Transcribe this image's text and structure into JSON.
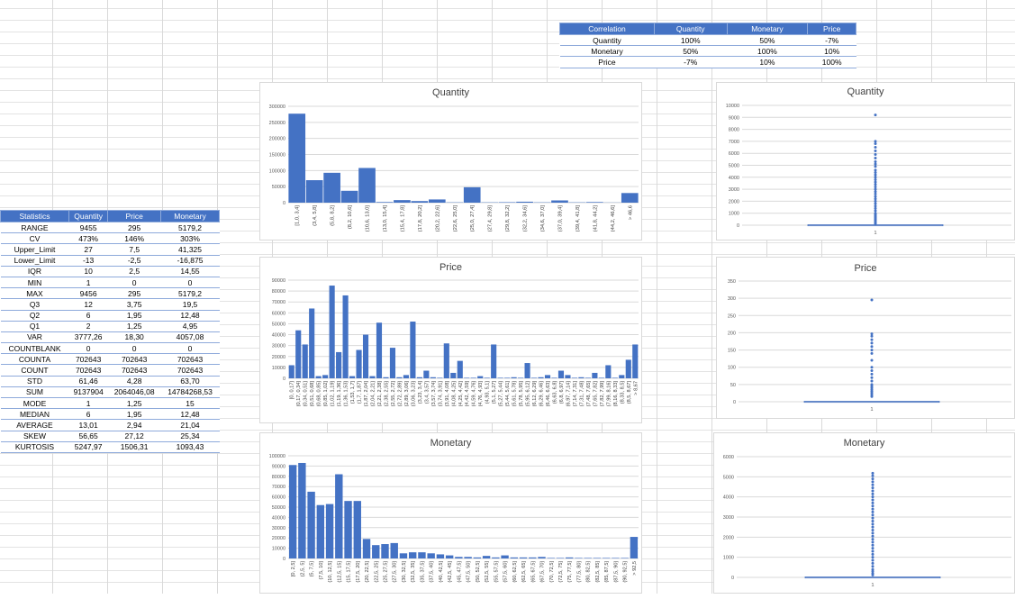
{
  "correlation": {
    "headers": [
      "Correlation",
      "Quantity",
      "Monetary",
      "Price"
    ],
    "rows": [
      [
        "Quantity",
        "100%",
        "50%",
        "-7%"
      ],
      [
        "Monetary",
        "50%",
        "100%",
        "10%"
      ],
      [
        "Price",
        "-7%",
        "10%",
        "100%"
      ]
    ]
  },
  "statistics": {
    "headers": [
      "Statistics",
      "Quantity",
      "Price",
      "Monetary"
    ],
    "rows": [
      [
        "RANGE",
        "9455",
        "295",
        "5179,2"
      ],
      [
        "CV",
        "473%",
        "146%",
        "303%"
      ],
      [
        "Upper_Limit",
        "27",
        "7,5",
        "41,325"
      ],
      [
        "Lower_Limit",
        "-13",
        "-2,5",
        "-16,875"
      ],
      [
        "IQR",
        "10",
        "2,5",
        "14,55"
      ],
      [
        "MIN",
        "1",
        "0",
        "0"
      ],
      [
        "MAX",
        "9456",
        "295",
        "5179,2"
      ],
      [
        "Q3",
        "12",
        "3,75",
        "19,5"
      ],
      [
        "Q2",
        "6",
        "1,95",
        "12,48"
      ],
      [
        "Q1",
        "2",
        "1,25",
        "4,95"
      ],
      [
        "VAR",
        "3777,26",
        "18,30",
        "4057,08"
      ],
      [
        "COUNTBLANK",
        "0",
        "0",
        "0"
      ],
      [
        "COUNTA",
        "702643",
        "702643",
        "702643"
      ],
      [
        "COUNT",
        "702643",
        "702643",
        "702643"
      ],
      [
        "STD",
        "61,46",
        "4,28",
        "63,70"
      ],
      [
        "SUM",
        "9137904",
        "2064046,08",
        "14784268,53"
      ],
      [
        "MODE",
        "1",
        "1,25",
        "15"
      ],
      [
        "MEDIAN",
        "6",
        "1,95",
        "12,48"
      ],
      [
        "AVERAGE",
        "13,01",
        "2,94",
        "21,04"
      ],
      [
        "SKEW",
        "56,65",
        "27,12",
        "25,34"
      ],
      [
        "KURTOSIS",
        "5247,97",
        "1506,31",
        "1093,43"
      ]
    ]
  },
  "chart_data": [
    {
      "id": "hist-quantity",
      "type": "bar",
      "title": "Quantity",
      "ylim": [
        0,
        300000
      ],
      "yticks": [
        0,
        50000,
        100000,
        150000,
        200000,
        250000,
        300000
      ],
      "categories": [
        "[1,0, 3,4]",
        "(3,4, 5,8]",
        "(5,8, 8,2]",
        "(8,2, 10,6]",
        "(10,6, 13,0]",
        "(13,0, 15,4]",
        "(15,4, 17,8]",
        "(17,8, 20,2]",
        "(20,2, 22,6]",
        "(22,6, 25,0]",
        "(25,0, 27,4]",
        "(27,4, 29,8]",
        "(29,8, 32,2]",
        "(32,2, 34,6]",
        "(34,6, 37,0]",
        "(37,0, 39,4]",
        "(39,4, 41,8]",
        "(41,8, 44,2]",
        "(44,2, 46,6]",
        "> 46,6"
      ],
      "values": [
        277000,
        70000,
        93000,
        37000,
        108000,
        2000,
        8000,
        5000,
        10000,
        1000,
        48000,
        1000,
        1500,
        3000,
        1000,
        7000,
        1000,
        2000,
        500,
        30000
      ],
      "grid": true
    },
    {
      "id": "hist-price",
      "type": "bar",
      "title": "Price",
      "ylim": [
        0,
        90000
      ],
      "yticks": [
        0,
        10000,
        20000,
        30000,
        40000,
        50000,
        60000,
        70000,
        80000,
        90000
      ],
      "categories": [
        "[0, 0,17]",
        "(0,17, 0,34]",
        "(0,34, 0,51]",
        "(0,51, 0,68]",
        "(0,68, 0,85]",
        "(0,85, 1,02]",
        "(1,02, 1,19]",
        "(1,19, 1,36]",
        "(1,36, 1,53]",
        "(1,53, 1,7]",
        "(1,7, 1,87]",
        "(1,87, 2,04]",
        "(2,04, 2,21]",
        "(2,21, 2,38]",
        "(2,38, 2,55]",
        "(2,55, 2,72]",
        "(2,72, 2,89]",
        "(2,89, 3,06]",
        "(3,06, 3,23]",
        "(3,23, 3,4]",
        "(3,4, 3,57]",
        "(3,57, 3,74]",
        "(3,74, 3,91]",
        "(3,91, 4,08]",
        "(4,08, 4,25]",
        "(4,25, 4,42]",
        "(4,42, 4,59]",
        "(4,59, 4,76]",
        "(4,76, 4,93]",
        "(4,93, 5,1]",
        "(5,1, 5,27]",
        "(5,27, 5,44]",
        "(5,44, 5,61]",
        "(5,61, 5,78]",
        "(5,78, 5,95]",
        "(5,95, 6,12]",
        "(6,12, 6,29]",
        "(6,29, 6,46]",
        "(6,46, 6,63]",
        "(6,63, 6,8]",
        "(6,8, 6,97]",
        "(6,97, 7,14]",
        "(7,14, 7,31]",
        "(7,31, 7,48]",
        "(7,48, 7,65]",
        "(7,65, 7,82]",
        "(7,82, 7,99]",
        "(7,99, 8,16]",
        "(8,16, 8,33]",
        "(8,33, 8,5]",
        "(8,5, 8,67]",
        "> 8,67"
      ],
      "values": [
        12000,
        44000,
        31000,
        64000,
        2000,
        3000,
        85000,
        24000,
        76000,
        2000,
        26000,
        40000,
        2000,
        51000,
        1000,
        28000,
        1000,
        3000,
        52000,
        1000,
        7000,
        1000,
        500,
        32000,
        5000,
        16000,
        500,
        500,
        2000,
        500,
        31000,
        500,
        500,
        1000,
        500,
        14000,
        500,
        1000,
        3000,
        500,
        7000,
        3000,
        500,
        1000,
        500,
        5000,
        500,
        12000,
        500,
        3000,
        17000,
        31000
      ],
      "grid": true
    },
    {
      "id": "hist-monetary",
      "type": "bar",
      "title": "Monetary",
      "ylim": [
        0,
        100000
      ],
      "yticks": [
        0,
        10000,
        20000,
        30000,
        40000,
        50000,
        60000,
        70000,
        80000,
        90000,
        100000
      ],
      "categories": [
        "[0, 2,5]",
        "(2,5, 5]",
        "(5, 7,5]",
        "(7,5, 10]",
        "(10, 12,5]",
        "(12,5, 15]",
        "(15, 17,5]",
        "(17,5, 20]",
        "(20, 22,5]",
        "(22,5, 25]",
        "(25, 27,5]",
        "(27,5, 30]",
        "(30, 32,5]",
        "(32,5, 35]",
        "(35, 37,5]",
        "(37,5, 40]",
        "(40, 42,5]",
        "(42,5, 45]",
        "(45, 47,5]",
        "(47,5, 50]",
        "(50, 52,5]",
        "(52,5, 55]",
        "(55, 57,5]",
        "(57,5, 60]",
        "(60, 62,5]",
        "(62,5, 65]",
        "(65, 67,5]",
        "(67,5, 70]",
        "(70, 72,5]",
        "(72,5, 75]",
        "(75, 77,5]",
        "(77,5, 80]",
        "(80, 82,5]",
        "(82,5, 85]",
        "(85, 87,5]",
        "(87,5, 90]",
        "(90, 92,5]",
        "> 92,5"
      ],
      "values": [
        91000,
        93000,
        65000,
        52000,
        53000,
        82000,
        56000,
        56000,
        19000,
        13000,
        14000,
        15000,
        5000,
        6000,
        6000,
        5000,
        4000,
        3000,
        1500,
        1500,
        1000,
        2500,
        1000,
        3000,
        1000,
        1000,
        1000,
        1500,
        500,
        500,
        1000,
        500,
        500,
        500,
        500,
        500,
        500,
        21000
      ],
      "grid": true
    },
    {
      "id": "box-quantity",
      "type": "scatter",
      "title": "Quantity",
      "ylim": [
        0,
        10000
      ],
      "yticks": [
        0,
        1000,
        2000,
        3000,
        4000,
        5000,
        6000,
        7000,
        8000,
        9000,
        10000
      ],
      "categories": [
        "1"
      ],
      "x": [
        1
      ],
      "values": [
        9200,
        7000,
        6800,
        6500,
        6200,
        5900,
        5600,
        5300,
        5100,
        4900,
        4600,
        4400,
        4200,
        4000,
        3800,
        3600,
        3400,
        3200,
        3000,
        2800,
        2600,
        2400,
        2200,
        2000,
        1800,
        1600,
        1400,
        1200,
        1000,
        900,
        800,
        700,
        600,
        500,
        400,
        300,
        200,
        100
      ],
      "grid": true
    },
    {
      "id": "box-price",
      "type": "scatter",
      "title": "Price",
      "ylim": [
        0,
        350
      ],
      "yticks": [
        0,
        50,
        100,
        150,
        200,
        250,
        300,
        350
      ],
      "categories": [
        "1"
      ],
      "x": [
        1
      ],
      "values": [
        295,
        197,
        190,
        180,
        170,
        160,
        150,
        140,
        120,
        100,
        90,
        80,
        70,
        60,
        50,
        45,
        40,
        35,
        30,
        25,
        20,
        15
      ],
      "grid": true
    },
    {
      "id": "box-monetary",
      "type": "scatter",
      "title": "Monetary",
      "ylim": [
        0,
        6000
      ],
      "yticks": [
        0,
        1000,
        2000,
        3000,
        4000,
        5000,
        6000
      ],
      "categories": [
        "1"
      ],
      "x": [
        1
      ],
      "values": [
        5180,
        5050,
        4900,
        4750,
        4600,
        4450,
        4300,
        4150,
        4000,
        3850,
        3700,
        3550,
        3400,
        3250,
        3100,
        2950,
        2800,
        2650,
        2500,
        2350,
        2200,
        2050,
        1900,
        1750,
        1600,
        1450,
        1300,
        1150,
        1000,
        850,
        700,
        550,
        400,
        300,
        200,
        120
      ],
      "grid": true
    }
  ]
}
